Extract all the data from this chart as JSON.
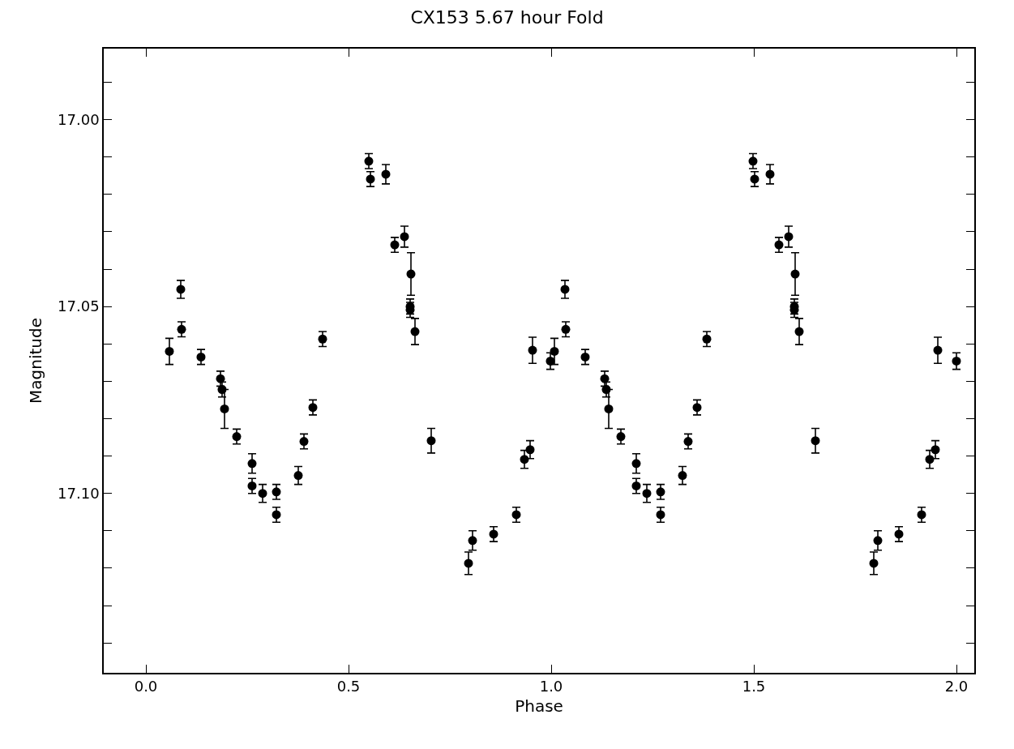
{
  "chart_data": {
    "type": "scatter",
    "title": "CX153 5.67 hour Fold",
    "xlabel": "Phase",
    "ylabel": "Magnitude",
    "marker": "circle",
    "xlim": [
      -0.104,
      2.044
    ],
    "ylim": [
      17.148,
      16.981
    ],
    "xticks": [
      {
        "value": 0,
        "label": "0.0"
      },
      {
        "value": 0.5,
        "label": "0.5"
      },
      {
        "value": 1,
        "label": "1.0"
      },
      {
        "value": 1.5,
        "label": "1.5"
      },
      {
        "value": 2,
        "label": "2.0"
      }
    ],
    "yticks": [
      {
        "value": 16.99,
        "label": null
      },
      {
        "value": 17.0,
        "label": "17.00"
      },
      {
        "value": 17.01,
        "label": null
      },
      {
        "value": 17.02,
        "label": null
      },
      {
        "value": 17.03,
        "label": null
      },
      {
        "value": 17.04,
        "label": null
      },
      {
        "value": 17.05,
        "label": "17.05"
      },
      {
        "value": 17.06,
        "label": null
      },
      {
        "value": 17.07,
        "label": null
      },
      {
        "value": 17.08,
        "label": null
      },
      {
        "value": 17.09,
        "label": null
      },
      {
        "value": 17.1,
        "label": "17.10"
      },
      {
        "value": 17.11,
        "label": null
      },
      {
        "value": 17.12,
        "label": null
      },
      {
        "value": 17.13,
        "label": null
      },
      {
        "value": 17.14,
        "label": null
      }
    ],
    "series": [
      {
        "color": "#000000",
        "x": [
          0.058,
          0.086,
          0.088,
          0.136,
          0.184,
          0.188,
          0.194,
          0.224,
          0.262,
          0.262,
          0.288,
          0.322,
          0.322,
          0.376,
          0.39,
          0.412,
          0.436,
          0.55,
          0.554,
          0.592,
          0.614,
          0.638,
          0.654,
          0.652,
          0.652,
          0.664,
          0.704,
          0.796,
          0.806,
          0.858,
          0.914,
          0.934,
          0.948,
          0.954,
          0.998,
          1.008,
          1.034,
          1.036,
          1.084,
          1.132,
          1.136,
          1.142,
          1.172,
          1.21,
          1.21,
          1.236,
          1.27,
          1.27,
          1.324,
          1.338,
          1.36,
          1.384,
          1.498,
          1.502,
          1.54,
          1.562,
          1.586,
          1.602,
          1.6,
          1.6,
          1.612,
          1.652,
          1.796,
          1.806,
          1.858,
          1.914,
          1.934,
          1.948,
          1.954,
          2.0
        ],
        "values": [
          17.062,
          17.0454,
          17.0561,
          17.0635,
          17.0693,
          17.0722,
          17.0774,
          17.0848,
          17.092,
          17.098,
          17.1,
          17.0996,
          17.1057,
          17.0952,
          17.0861,
          17.077,
          17.0587,
          17.0111,
          17.0159,
          17.0146,
          17.0335,
          17.0313,
          17.0413,
          17.05,
          17.0509,
          17.0567,
          17.0859,
          17.1187,
          17.1126,
          17.1109,
          17.1057,
          17.0909,
          17.0883,
          17.0617,
          17.0646,
          17.062,
          17.0454,
          17.0561,
          17.0635,
          17.0693,
          17.0722,
          17.0774,
          17.0848,
          17.092,
          17.098,
          17.1,
          17.0996,
          17.1057,
          17.0952,
          17.0861,
          17.077,
          17.0587,
          17.0111,
          17.0159,
          17.0146,
          17.0335,
          17.0313,
          17.0413,
          17.05,
          17.0509,
          17.0567,
          17.0859,
          17.1187,
          17.1126,
          17.1109,
          17.1057,
          17.0909,
          17.0883,
          17.0617,
          17.0646
        ],
        "errors": [
          0.0035,
          0.0024,
          0.002,
          0.002,
          0.002,
          0.002,
          0.0052,
          0.002,
          0.0026,
          0.002,
          0.0024,
          0.002,
          0.002,
          0.0024,
          0.002,
          0.002,
          0.002,
          0.002,
          0.002,
          0.0026,
          0.002,
          0.0028,
          0.0057,
          0.002,
          0.002,
          0.0035,
          0.0033,
          0.003,
          0.0026,
          0.002,
          0.002,
          0.0024,
          0.0024,
          0.0035,
          0.0022,
          0.0035,
          0.0024,
          0.002,
          0.002,
          0.002,
          0.002,
          0.0052,
          0.002,
          0.0026,
          0.002,
          0.0024,
          0.002,
          0.002,
          0.0024,
          0.002,
          0.002,
          0.002,
          0.002,
          0.002,
          0.0026,
          0.002,
          0.0028,
          0.0057,
          0.002,
          0.002,
          0.0035,
          0.0033,
          0.003,
          0.0026,
          0.002,
          0.002,
          0.0024,
          0.0024,
          0.0035,
          0.0022
        ]
      }
    ]
  }
}
